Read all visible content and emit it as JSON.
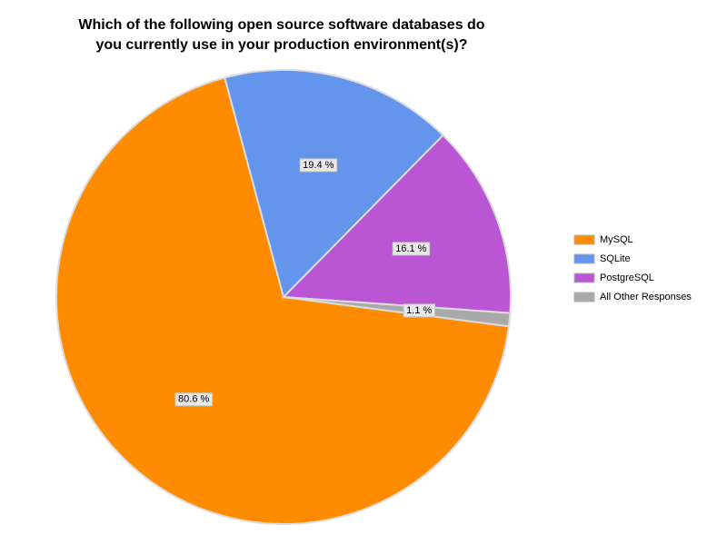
{
  "chart_data": {
    "type": "pie",
    "title": "Which of the following open source software databases do you currently use in your production environment(s)?",
    "categories": [
      "MySQL",
      "SQLite",
      "PostgreSQL",
      "All Other Responses"
    ],
    "values": [
      80.6,
      19.4,
      16.1,
      1.1
    ],
    "value_labels": [
      "80.6 %",
      "19.4 %",
      "16.1 %",
      "1.1 %"
    ],
    "colors": [
      "#ff8c00",
      "#6495ed",
      "#ba55d3",
      "#a9a9a9"
    ],
    "legend": "right"
  }
}
